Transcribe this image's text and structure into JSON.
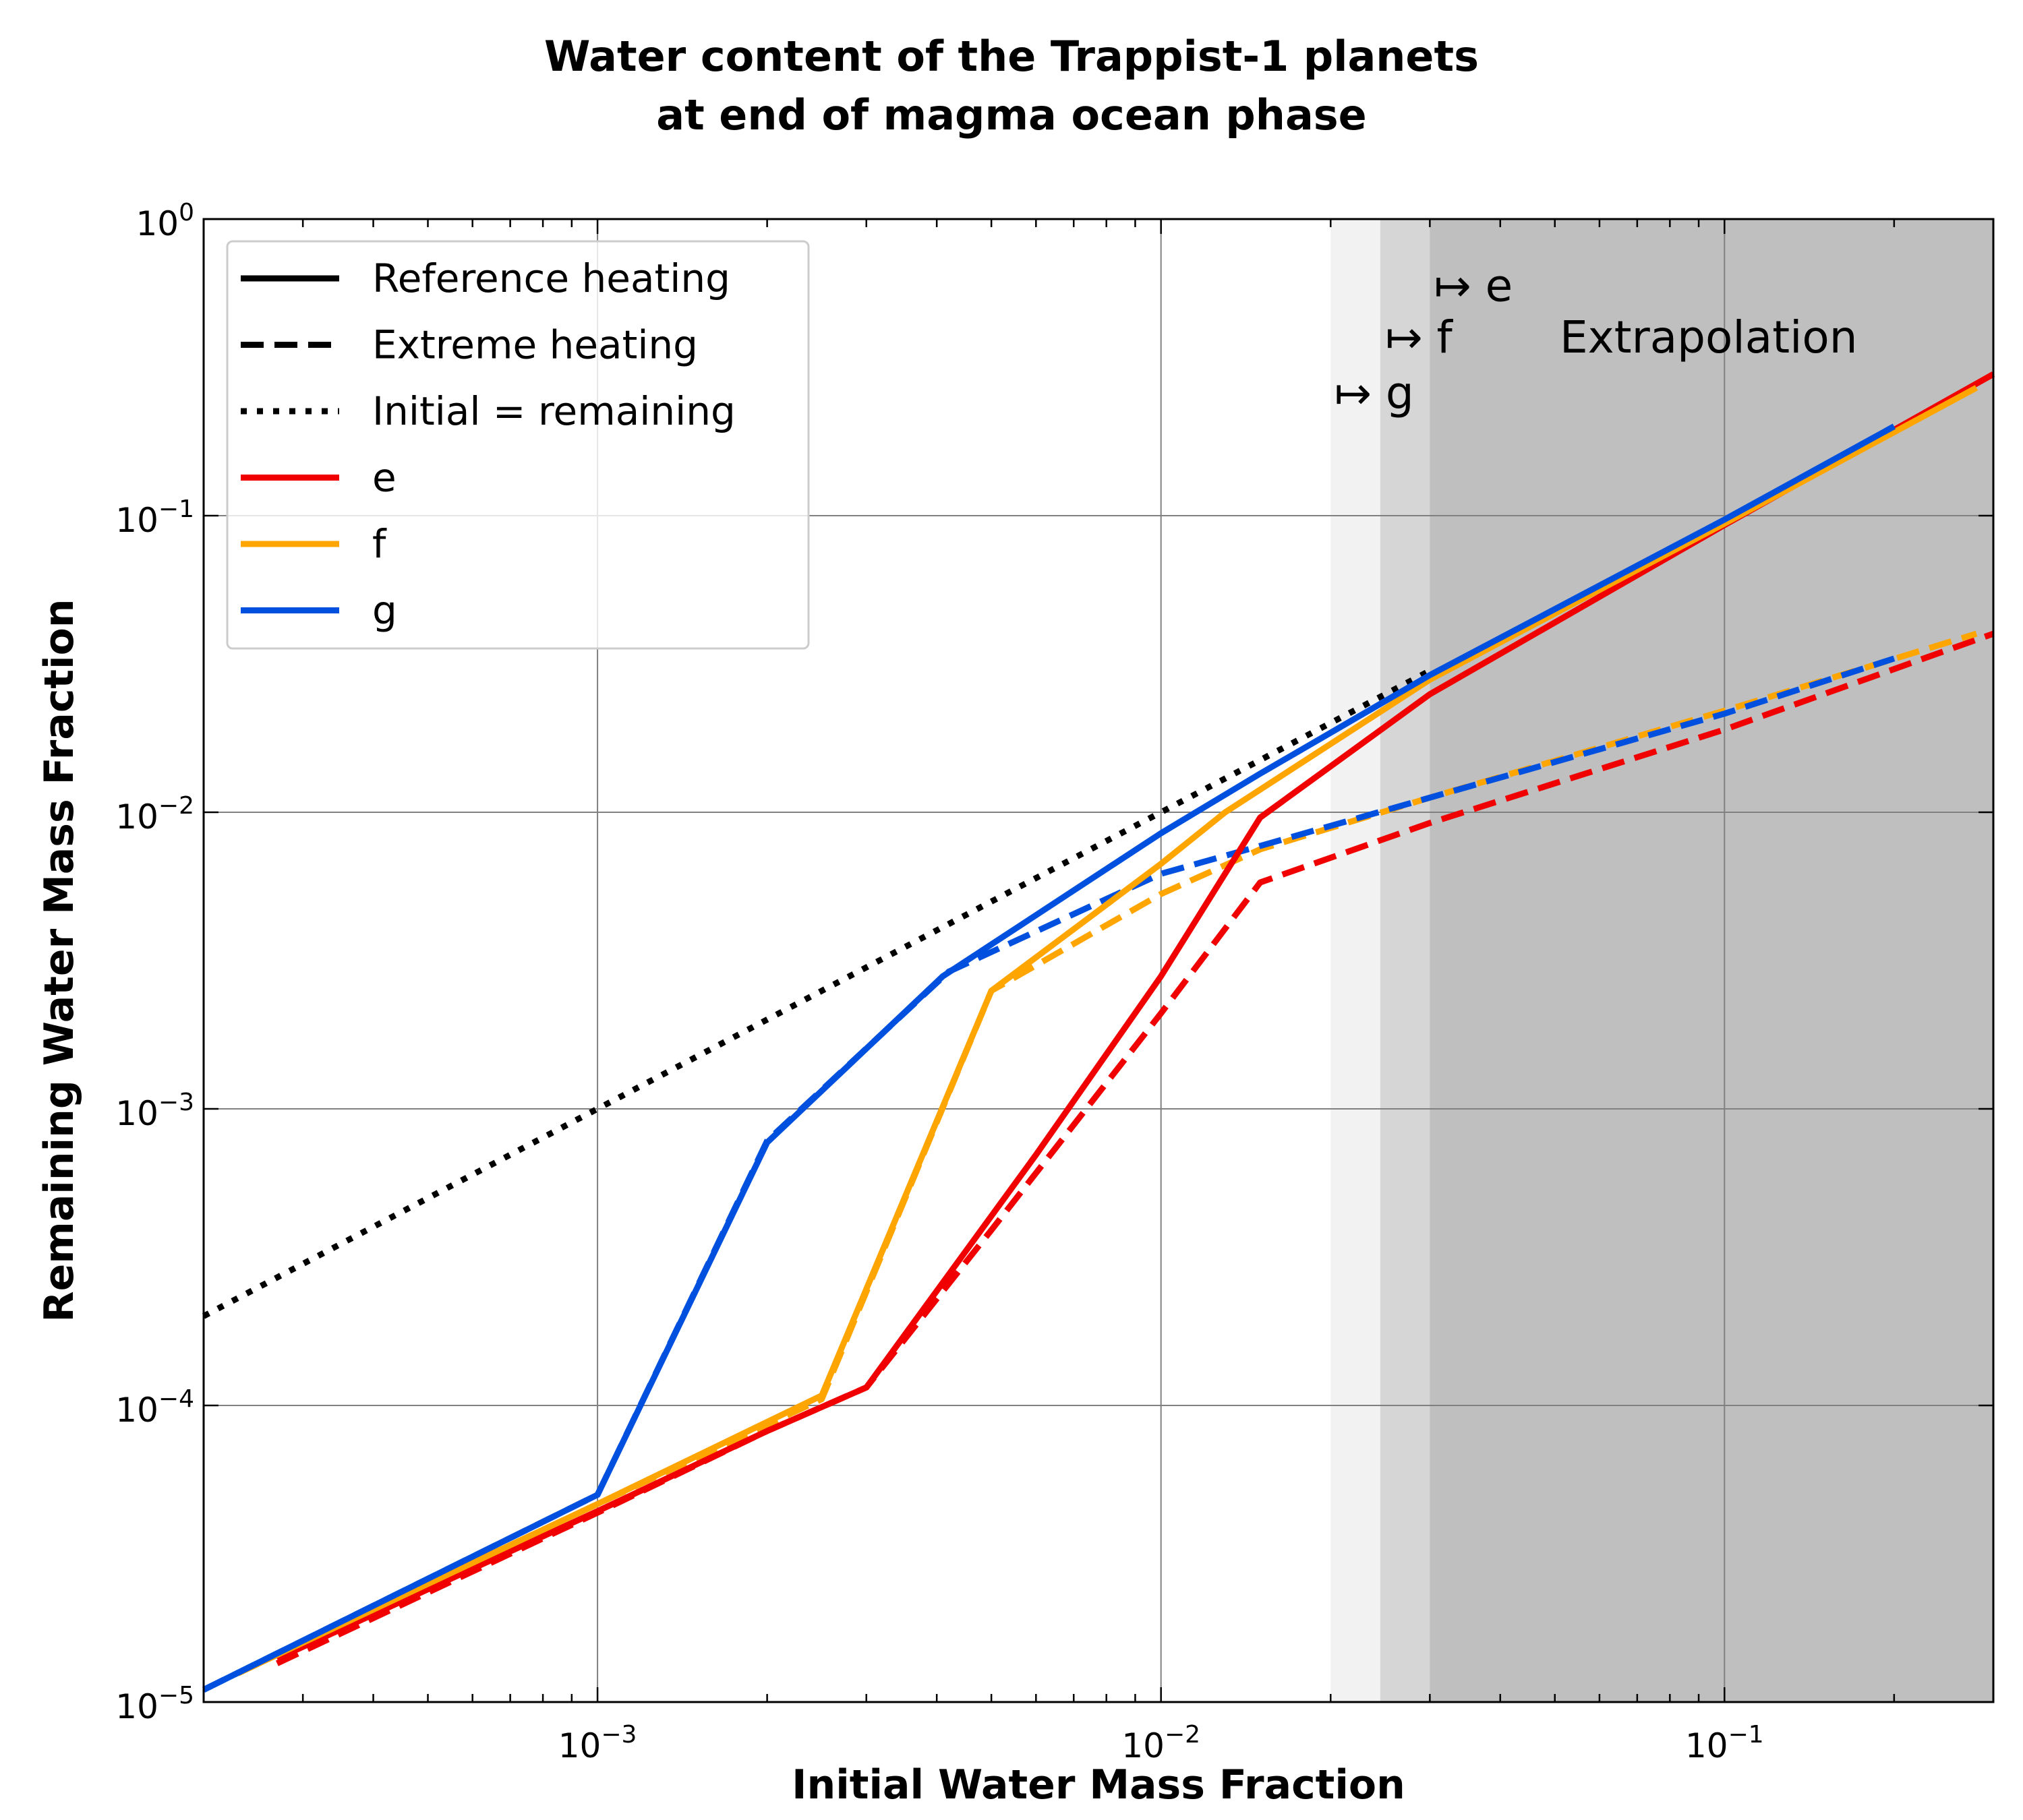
{
  "chart_data": {
    "type": "line",
    "title": [
      "Water content of the Trappist-1 planets",
      "at end of magma ocean phase"
    ],
    "xlabel": "Initial Water Mass Fraction",
    "ylabel": "Remaining Water Mass Fraction",
    "x_scale": "log",
    "y_scale": "log",
    "xlim": [
      0.0002,
      0.3
    ],
    "ylim": [
      1e-05,
      1
    ],
    "grid": true,
    "x_ticks": [
      {
        "value": 0.001,
        "base": "10",
        "exp": "−3"
      },
      {
        "value": 0.01,
        "base": "10",
        "exp": "−2"
      },
      {
        "value": 0.1,
        "base": "10",
        "exp": "−1"
      }
    ],
    "y_ticks": [
      {
        "value": 1e-05,
        "base": "10",
        "exp": "−5"
      },
      {
        "value": 0.0001,
        "base": "10",
        "exp": "−4"
      },
      {
        "value": 0.001,
        "base": "10",
        "exp": "−3"
      },
      {
        "value": 0.01,
        "base": "10",
        "exp": "−2"
      },
      {
        "value": 0.1,
        "base": "10",
        "exp": "−1"
      },
      {
        "value": 1,
        "base": "10",
        "exp": "0"
      }
    ],
    "shaded_regions": [
      {
        "x0": 0.02,
        "x1": 0.3,
        "color": "#f2f2f2"
      },
      {
        "x0": 0.0245,
        "x1": 0.3,
        "color": "#d6d6d6"
      },
      {
        "x0": 0.03,
        "x1": 0.3,
        "color": "#bfbfbf"
      }
    ],
    "annotations": [
      {
        "text": "↦ e",
        "x": 0.0305,
        "y": 0.53
      },
      {
        "text": "↦ f",
        "x": 0.025,
        "y": 0.355
      },
      {
        "text": "↦ g",
        "x": 0.0203,
        "y": 0.23
      },
      {
        "text": "Extrapolation",
        "x": 0.051,
        "y": 0.355
      }
    ],
    "legend": {
      "position": "top-left",
      "entries": [
        {
          "label": "Reference heating",
          "color": "#000000",
          "style": "solid"
        },
        {
          "label": "Extreme heating",
          "color": "#000000",
          "style": "dashed"
        },
        {
          "label": "Initial = remaining",
          "color": "#000000",
          "style": "dotted"
        },
        {
          "label": "e",
          "color": "#f00000",
          "style": "solid"
        },
        {
          "label": "f",
          "color": "#ffa500",
          "style": "solid"
        },
        {
          "label": "g",
          "color": "#0050e0",
          "style": "solid"
        }
      ]
    },
    "series": [
      {
        "name": "Initial = remaining",
        "color": "#000000",
        "style": "dotted",
        "x": [
          0.0002,
          0.03
        ],
        "y": [
          0.0002,
          0.03
        ]
      },
      {
        "name": "e",
        "heating": "Extreme heating",
        "color": "#f00000",
        "style": "dashed",
        "x": [
          0.00027,
          0.001,
          0.002,
          0.003,
          0.005,
          0.01,
          0.015,
          0.03,
          0.1,
          0.3
        ],
        "y": [
          1.35e-05,
          4.35e-05,
          8.2e-05,
          0.000115,
          0.00039,
          0.0021,
          0.0058,
          0.0092,
          0.019,
          0.04
        ]
      },
      {
        "name": "f",
        "heating": "Extreme heating",
        "color": "#ffa500",
        "style": "dashed",
        "x": [
          0.00023,
          0.001,
          0.0025,
          0.005,
          0.01,
          0.015,
          0.03,
          0.1,
          0.28
        ],
        "y": [
          1.25e-05,
          4.65e-05,
          0.000105,
          0.0025,
          0.0053,
          0.0075,
          0.0112,
          0.022,
          0.04
        ]
      },
      {
        "name": "g",
        "heating": "Extreme heating",
        "color": "#0050e0",
        "style": "dashed",
        "x": [
          0.0002,
          0.001,
          0.002,
          0.0042,
          0.01,
          0.015,
          0.03,
          0.1,
          0.2
        ],
        "y": [
          1.1e-05,
          5e-05,
          0.00078,
          0.0029,
          0.0062,
          0.0077,
          0.0112,
          0.0215,
          0.033
        ]
      },
      {
        "name": "e",
        "heating": "Reference heating",
        "color": "#f00000",
        "style": "solid",
        "x": [
          0.00027,
          0.001,
          0.002,
          0.003,
          0.006,
          0.01,
          0.015,
          0.03,
          0.1,
          0.3
        ],
        "y": [
          1.4e-05,
          4.4e-05,
          8.2e-05,
          0.000115,
          0.0007,
          0.0028,
          0.0096,
          0.025,
          0.093,
          0.3
        ]
      },
      {
        "name": "f",
        "heating": "Reference heating",
        "color": "#ffa500",
        "style": "solid",
        "x": [
          0.00023,
          0.001,
          0.0025,
          0.005,
          0.01,
          0.013,
          0.03,
          0.1,
          0.28
        ],
        "y": [
          1.25e-05,
          4.65e-05,
          0.000108,
          0.0025,
          0.0067,
          0.01,
          0.028,
          0.094,
          0.27
        ]
      },
      {
        "name": "g",
        "heating": "Reference heating",
        "color": "#0050e0",
        "style": "solid",
        "x": [
          0.0002,
          0.001,
          0.002,
          0.0041,
          0.01,
          0.015,
          0.03,
          0.1,
          0.2
        ],
        "y": [
          1.1e-05,
          5e-05,
          0.00077,
          0.0028,
          0.0085,
          0.0135,
          0.029,
          0.097,
          0.2
        ]
      }
    ]
  }
}
